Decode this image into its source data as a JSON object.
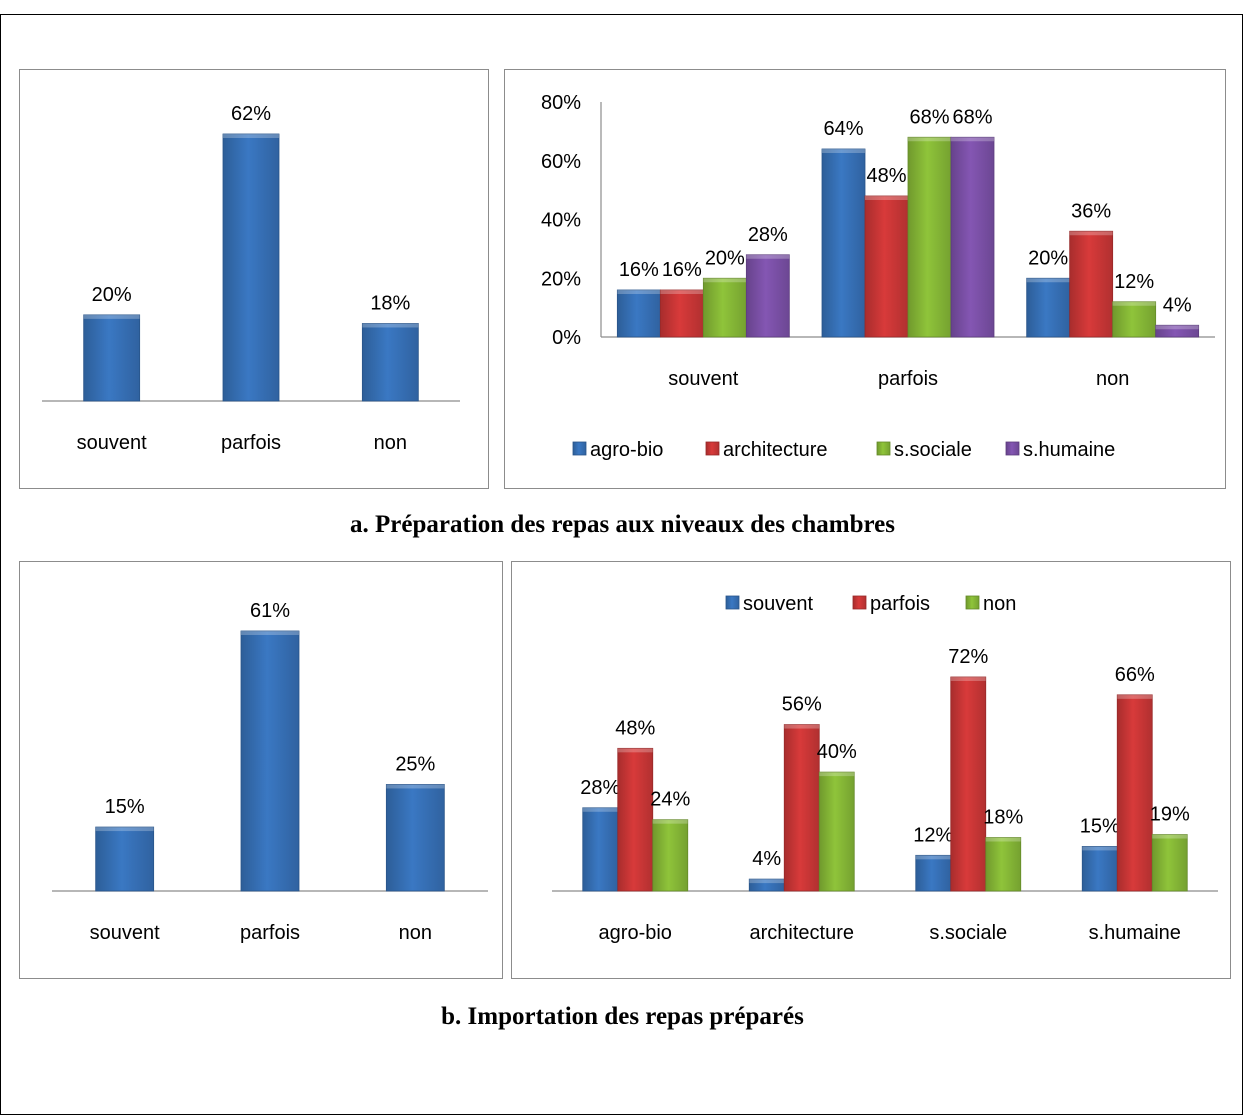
{
  "captions": {
    "a": "a.   Préparation des repas aux niveaux des chambres",
    "b": "b. Importation des repas préparés"
  },
  "colors": {
    "blue": "#3a78c3",
    "red": "#d83a3a",
    "green": "#8fc43a",
    "purple": "#8456b3"
  },
  "chart_data": [
    {
      "type": "bar",
      "title": "",
      "categories": [
        "souvent",
        "parfois",
        "non"
      ],
      "values": [
        20,
        62,
        18
      ],
      "value_labels": [
        "20%",
        "62%",
        "18%"
      ],
      "xlabel": "",
      "ylabel": "",
      "ylim": [
        0,
        62
      ],
      "grid": false,
      "legend": "none"
    },
    {
      "type": "bar",
      "title": "",
      "categories": [
        "souvent",
        "parfois",
        "non"
      ],
      "series": [
        {
          "name": "agro-bio",
          "values": [
            16,
            64,
            20
          ],
          "labels": [
            "16%",
            "64%",
            "20%"
          ]
        },
        {
          "name": "architecture",
          "values": [
            16,
            48,
            36
          ],
          "labels": [
            "16%",
            "48%",
            "36%"
          ]
        },
        {
          "name": "s.sociale",
          "values": [
            20,
            68,
            12
          ],
          "labels": [
            "20%",
            "68%",
            "12%"
          ]
        },
        {
          "name": "s.humaine",
          "values": [
            28,
            68,
            4
          ],
          "labels": [
            "28%",
            "68%",
            "4%"
          ]
        }
      ],
      "yticks": [
        "0%",
        "20%",
        "40%",
        "60%",
        "80%"
      ],
      "xlabel": "",
      "ylabel": "",
      "ylim": [
        0,
        80
      ],
      "grid": false,
      "legend": "bottom"
    },
    {
      "type": "bar",
      "title": "",
      "categories": [
        "souvent",
        "parfois",
        "non"
      ],
      "values": [
        15,
        61,
        25
      ],
      "value_labels": [
        "15%",
        "61%",
        "25%"
      ],
      "xlabel": "",
      "ylabel": "",
      "ylim": [
        0,
        61
      ],
      "grid": false,
      "legend": "none"
    },
    {
      "type": "bar",
      "title": "",
      "categories": [
        "agro-bio",
        "architecture",
        "s.sociale",
        "s.humaine"
      ],
      "series": [
        {
          "name": "souvent",
          "values": [
            28,
            4,
            12,
            15
          ],
          "labels": [
            "28%",
            "4%",
            "12%",
            "15%"
          ]
        },
        {
          "name": "parfois",
          "values": [
            48,
            56,
            72,
            66
          ],
          "labels": [
            "48%",
            "56%",
            "72%",
            "66%"
          ]
        },
        {
          "name": "non",
          "values": [
            24,
            40,
            18,
            19
          ],
          "labels": [
            "24%",
            "40%",
            "18%",
            "19%"
          ]
        }
      ],
      "xlabel": "",
      "ylabel": "",
      "ylim": [
        0,
        72
      ],
      "grid": false,
      "legend": "top"
    }
  ]
}
